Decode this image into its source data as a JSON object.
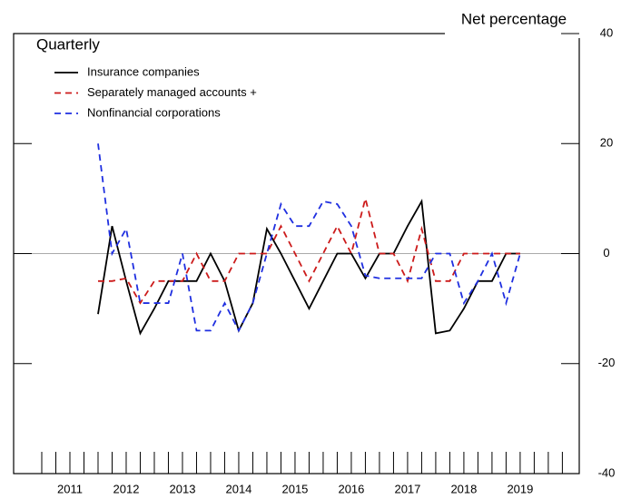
{
  "chart_data": {
    "type": "line",
    "subtitle": "Quarterly",
    "y_label": "Net percentage",
    "x": [
      2012.0,
      2012.25,
      2012.5,
      2012.75,
      2013.0,
      2013.25,
      2013.5,
      2013.75,
      2014.0,
      2014.25,
      2014.5,
      2014.75,
      2015.0,
      2015.25,
      2015.5,
      2015.75,
      2016.0,
      2016.25,
      2016.5,
      2016.75,
      2017.0,
      2017.25,
      2017.5,
      2017.75,
      2018.0,
      2018.25,
      2018.5,
      2018.75,
      2019.0,
      2019.25,
      2019.5
    ],
    "series": [
      {
        "name": "Insurance companies",
        "color": "#000000",
        "dash": "solid",
        "values": [
          -11,
          5,
          -5,
          -14.5,
          -10,
          -5,
          -5,
          -5,
          0,
          -5,
          -14,
          -9,
          4.5,
          0,
          -5,
          -10,
          -5,
          0,
          0,
          -4.5,
          0,
          0,
          5,
          9.5,
          -14.5,
          -14,
          -10,
          -5,
          -5,
          0,
          0
        ]
      },
      {
        "name": "Separately managed accounts +",
        "color": "#cc1a1a",
        "dash": "dashed",
        "values": [
          -5,
          -5,
          -4.5,
          -9,
          -5,
          -5,
          -5,
          0,
          -5,
          -5,
          0,
          0,
          0,
          5,
          0,
          -5,
          0,
          5,
          0,
          10,
          0,
          0,
          -5,
          4.5,
          -5,
          -5,
          0,
          0,
          0,
          0,
          0
        ]
      },
      {
        "name": "Nonfinancial corporations",
        "color": "#1f2fe0",
        "dash": "dashed",
        "values": [
          20,
          0,
          4.5,
          -9,
          -9,
          -9,
          0,
          -14,
          -14,
          -9,
          -14,
          -9,
          0,
          9,
          5,
          5,
          9.5,
          9,
          5,
          -4,
          -4.5,
          -4.5,
          -4.5,
          -4.5,
          0,
          0,
          -9,
          -5,
          0,
          -9,
          0
        ]
      }
    ],
    "xlim": [
      2010.5,
      2020.55
    ],
    "xticks": [
      {
        "value": 2011.5,
        "label": "2011"
      },
      {
        "value": 2012.5,
        "label": "2012"
      },
      {
        "value": 2013.5,
        "label": "2013"
      },
      {
        "value": 2014.5,
        "label": "2014"
      },
      {
        "value": 2015.5,
        "label": "2015"
      },
      {
        "value": 2016.5,
        "label": "2016"
      },
      {
        "value": 2017.5,
        "label": "2017"
      },
      {
        "value": 2018.5,
        "label": "2018"
      },
      {
        "value": 2019.5,
        "label": "2019"
      }
    ],
    "ylim": [
      -40,
      40
    ],
    "yticks": [
      -40,
      -20,
      0,
      20,
      40
    ],
    "zero_line": true
  }
}
